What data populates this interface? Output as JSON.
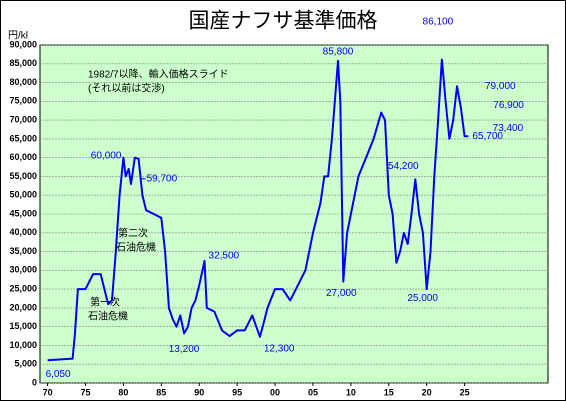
{
  "chart_data": {
    "type": "line",
    "title": "国産ナフサ基準価格",
    "y_label": "円/kl",
    "annotations": [
      "1982/7以降、輸入価格スライド",
      "(それ以前は交渉)",
      "第一次",
      "石油危機",
      "第二次",
      "石油危機"
    ],
    "x": [
      1970,
      1973.3,
      1973.6,
      1974,
      1975,
      1975.5,
      1976,
      1977,
      1977.5,
      1978,
      1978.5,
      1979,
      1979.5,
      1980,
      1980.3,
      1980.7,
      1981,
      1981.5,
      1982,
      1982.5,
      1983,
      1984,
      1985,
      1985.5,
      1986,
      1986.5,
      1987,
      1987.5,
      1988,
      1988.5,
      1989,
      1989.5,
      1990,
      1990.7,
      1991,
      1992,
      1993,
      1994,
      1995,
      1996,
      1996.5,
      1997,
      1998,
      1998.5,
      1999,
      2000,
      2001,
      2002,
      2003,
      2004,
      2005,
      2006,
      2006.5,
      2007,
      2007.5,
      2008.3,
      2008.6,
      2009,
      2009.5,
      2010,
      2011,
      2012,
      2013,
      2014,
      2014.5,
      2015,
      2015.5,
      2016,
      2016.5,
      2017,
      2017.5,
      2018,
      2018.5,
      2019,
      2019.5,
      2020,
      2020.5,
      2021,
      2021.5,
      2022,
      2022.5,
      2023,
      2023.5,
      2024,
      2024.5,
      2025,
      2025.5
    ],
    "values": [
      6050,
      6500,
      13000,
      25000,
      25000,
      27000,
      29000,
      29000,
      25000,
      21000,
      22000,
      35000,
      50000,
      60000,
      55000,
      57000,
      53000,
      60000,
      59700,
      50000,
      46000,
      45000,
      44000,
      35000,
      20000,
      17000,
      15000,
      18000,
      13200,
      15000,
      20000,
      22000,
      26000,
      32500,
      20000,
      19000,
      14000,
      12500,
      14000,
      14000,
      16000,
      18000,
      12300,
      16000,
      20000,
      25000,
      25000,
      22000,
      26000,
      30000,
      40000,
      48000,
      55000,
      55000,
      65000,
      85800,
      75000,
      27000,
      40000,
      45000,
      55000,
      60000,
      65000,
      72000,
      70000,
      50000,
      45000,
      32000,
      35000,
      40000,
      37000,
      45000,
      54200,
      45000,
      40000,
      25000,
      35000,
      55000,
      70000,
      86100,
      75000,
      65000,
      70000,
      79000,
      73400,
      65700,
      65700
    ],
    "color": "#0000ff",
    "point_labels": [
      {
        "x": 1970,
        "value": 6050,
        "label": "6,050"
      },
      {
        "x": 1980,
        "value": 60000,
        "label": "60,000"
      },
      {
        "x": 1982,
        "value": 59700,
        "label": "59,700"
      },
      {
        "x": 1990.7,
        "value": 32500,
        "label": "32,500"
      },
      {
        "x": 1988,
        "value": 13200,
        "label": "13,200"
      },
      {
        "x": 1998,
        "value": 12300,
        "label": "12,300"
      },
      {
        "x": 2008.3,
        "value": 85800,
        "label": "85,800"
      },
      {
        "x": 2009,
        "value": 27000,
        "label": "27,000"
      },
      {
        "x": 2018.5,
        "value": 54200,
        "label": "54,200"
      },
      {
        "x": 2020,
        "value": 25000,
        "label": "25,000"
      },
      {
        "x": 2022,
        "value": 86100,
        "label": "86,100"
      },
      {
        "x": 2024,
        "value": 79000,
        "label": "79,000"
      },
      {
        "x": 2024.3,
        "value": 76900,
        "label": "76,900"
      },
      {
        "x": 2024.6,
        "value": 73400,
        "label": "73,400"
      },
      {
        "x": 2025.5,
        "value": 65700,
        "label": "65,700"
      }
    ],
    "xlim": [
      1969,
      2036
    ],
    "xticks": [
      {
        "value": 1970,
        "label": "70"
      },
      {
        "value": 1975,
        "label": "75"
      },
      {
        "value": 1980,
        "label": "80"
      },
      {
        "value": 1985,
        "label": "85"
      },
      {
        "value": 1990,
        "label": "90"
      },
      {
        "value": 1995,
        "label": "95"
      },
      {
        "value": 2000,
        "label": "00"
      },
      {
        "value": 2005,
        "label": "05"
      },
      {
        "value": 2010,
        "label": "10"
      },
      {
        "value": 2015,
        "label": "15"
      },
      {
        "value": 2020,
        "label": "20"
      },
      {
        "value": 2025,
        "label": "25"
      }
    ],
    "ylim": [
      0,
      90000
    ],
    "yticks": [
      0,
      {
        "value": 5000,
        "label": "5,000"
      },
      {
        "value": 10000,
        "label": "10,000"
      },
      {
        "value": 15000,
        "label": "15,000"
      },
      {
        "value": 20000,
        "label": "20,000"
      },
      {
        "value": 25000,
        "label": "25,000"
      },
      {
        "value": 30000,
        "label": "30,000"
      },
      {
        "value": 35000,
        "label": "35,000"
      },
      {
        "value": 40000,
        "label": "40,000"
      },
      {
        "value": 45000,
        "label": "45,000"
      },
      {
        "value": 50000,
        "label": "50,000"
      },
      {
        "value": 55000,
        "label": "55,000"
      },
      {
        "value": 60000,
        "label": "60,000"
      },
      {
        "value": 65000,
        "label": "65,000"
      },
      {
        "value": 70000,
        "label": "70,000"
      },
      {
        "value": 75000,
        "label": "75,000"
      },
      {
        "value": 80000,
        "label": "80,000"
      },
      {
        "value": 85000,
        "label": "85,000"
      },
      {
        "value": 90000,
        "label": "90,000"
      }
    ],
    "grid": true,
    "plot_background": "#ccffcc"
  }
}
